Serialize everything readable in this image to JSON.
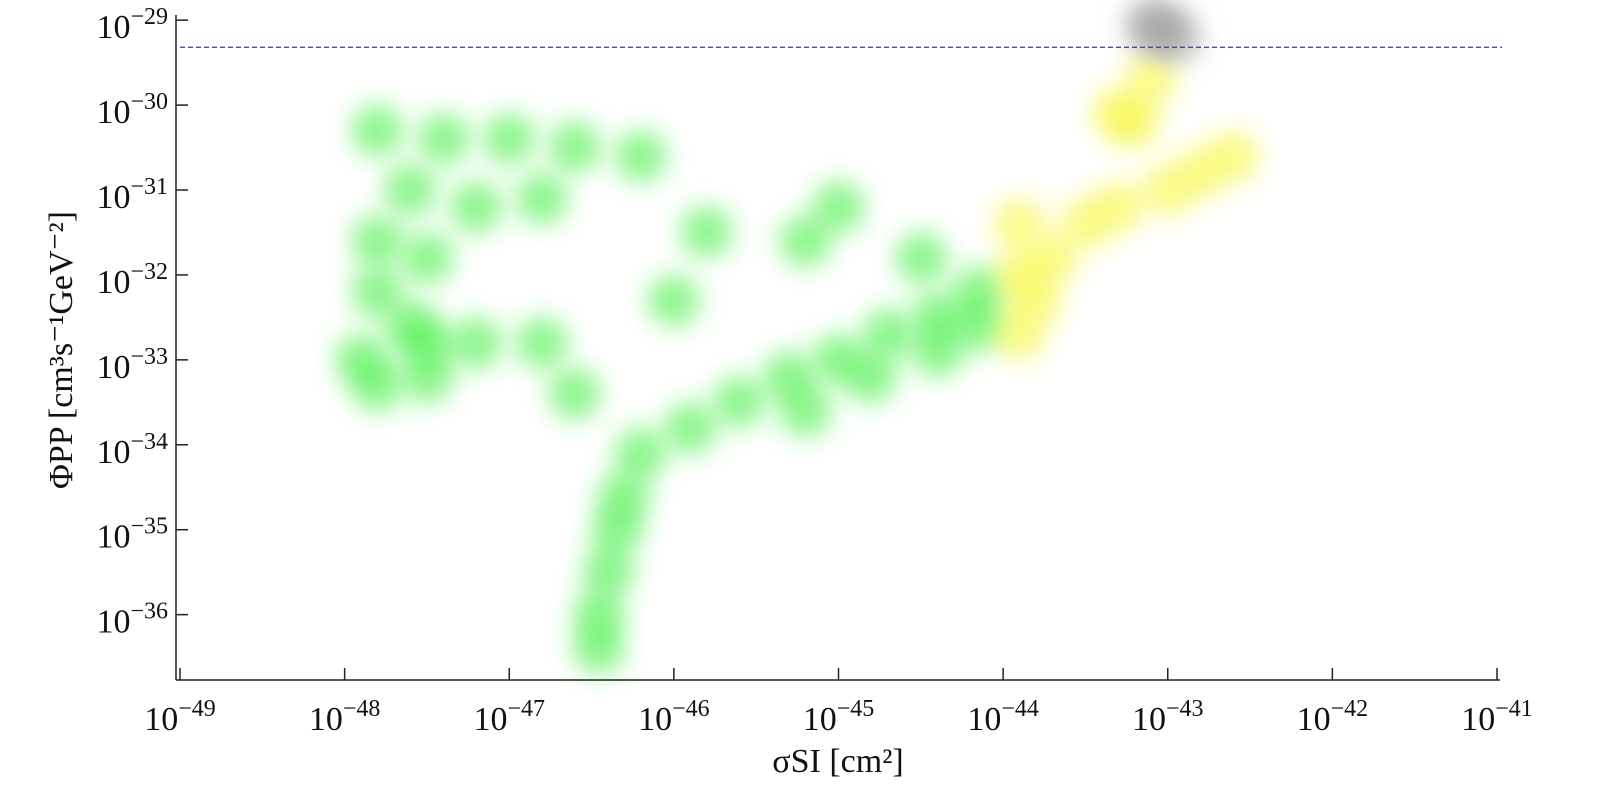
{
  "chart_data": {
    "type": "scatter",
    "xlabel": "σSI [cm²]",
    "ylabel": "ΦPP [cm³s⁻¹GeV⁻²]",
    "xscale": "log",
    "yscale": "log",
    "xlim": [
      1e-49,
      1e-41
    ],
    "ylim": [
      1.7e-37,
      1.15e-29
    ],
    "xticks": [
      {
        "value": 1e-49,
        "label": "10−49"
      },
      {
        "value": 1e-48,
        "label": "10−48"
      },
      {
        "value": 1e-47,
        "label": "10−47"
      },
      {
        "value": 1e-46,
        "label": "10−46"
      },
      {
        "value": 1e-45,
        "label": "10−45"
      },
      {
        "value": 1e-44,
        "label": "10−44"
      },
      {
        "value": 1e-43,
        "label": "10−43"
      },
      {
        "value": 1e-42,
        "label": "10−42"
      },
      {
        "value": 1e-41,
        "label": "10−41"
      }
    ],
    "yticks": [
      {
        "value": 1e-29,
        "label": "10−29"
      },
      {
        "value": 1e-30,
        "label": "10−30"
      },
      {
        "value": 1e-31,
        "label": "10−31"
      },
      {
        "value": 1e-32,
        "label": "10−32"
      },
      {
        "value": 1e-33,
        "label": "10−33"
      },
      {
        "value": 1e-34,
        "label": "10−34"
      },
      {
        "value": 1e-35,
        "label": "10−35"
      },
      {
        "value": 1e-36,
        "label": "10−36"
      }
    ],
    "reference_line": {
      "value": 4.8e-30,
      "color": "#3a3a8c",
      "style": "dashed"
    },
    "series": [
      {
        "color": "#33ee33",
        "x": [
          6.3e-47,
          1.26e-46,
          2.5e-46,
          5e-46,
          1e-45,
          2e-45,
          4e-45,
          7.1e-45,
          7.1e-45,
          4e-45,
          1.58e-45,
          6.3e-46,
          5e-47,
          4.5e-47,
          4e-47,
          3.5e-47,
          3.5e-47,
          1.58e-48,
          4e-48,
          1e-47,
          2.5e-47,
          6.3e-47,
          2.5e-48,
          6.3e-48,
          1.58e-47,
          1.58e-48,
          3.2e-48,
          1.58e-48,
          2.5e-48,
          1.26e-48,
          3.2e-48,
          6.3e-48,
          1.58e-47,
          1.58e-48,
          3.2e-48,
          1.58e-46,
          6.3e-46,
          1e-46,
          1e-45,
          2.5e-47,
          3.2e-45
        ],
        "values": [
          7.9e-35,
          1.58e-34,
          3.2e-34,
          6.3e-34,
          1e-33,
          2e-33,
          3.2e-33,
          6.3e-33,
          2.5e-33,
          1.26e-33,
          6.3e-34,
          2.5e-34,
          2.5e-35,
          1e-35,
          3.2e-36,
          1e-36,
          4e-37,
          5e-31,
          4e-31,
          4e-31,
          3.2e-31,
          2.5e-31,
          1e-31,
          6.3e-32,
          7.9e-32,
          2.5e-32,
          1.58e-32,
          6.3e-33,
          2.5e-33,
          1e-33,
          1.58e-33,
          1.58e-33,
          1.58e-33,
          5e-34,
          6.3e-34,
          3.2e-32,
          2.5e-32,
          5e-33,
          6.3e-32,
          4e-34,
          1.58e-32
        ]
      },
      {
        "color": "#f5f530",
        "x": [
          1.26e-44,
          2e-44,
          3.2e-44,
          5e-44,
          1e-43,
          1.58e-43,
          2.5e-43,
          1.26e-44,
          1.58e-44,
          1.26e-44,
          6.3e-44,
          7.9e-44,
          5e-44
        ],
        "values": [
          4e-32,
          1.58e-32,
          4e-32,
          6.3e-32,
          1e-31,
          1.58e-31,
          2.5e-31,
          1e-32,
          5e-33,
          2e-33,
          6.3e-31,
          2e-30,
          7.9e-31
        ]
      },
      {
        "color": "#9a9a9a",
        "x": [
          8.9e-44,
          1.12e-43,
          7.9e-44
        ],
        "values": [
          7.9e-30,
          6.3e-30,
          8.9e-30
        ]
      }
    ]
  }
}
